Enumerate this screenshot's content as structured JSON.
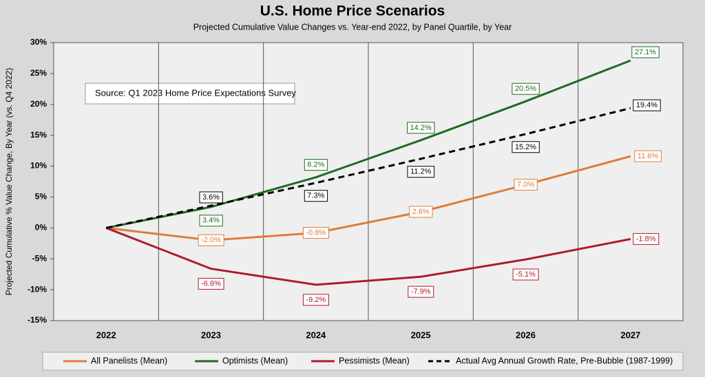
{
  "chart_data": {
    "type": "line",
    "title": "U.S. Home Price Scenarios",
    "subtitle": "Projected Cumulative Value Changes vs. Year-end 2022, by Panel Quartile, by Year",
    "y_label": "Projected Cumulative % Value Change, By Year  (vs. Q4 2022)",
    "annotation": "Source: Q1 2023 Home Price Expectations Survey",
    "categories": [
      "2022",
      "2023",
      "2024",
      "2025",
      "2026",
      "2027"
    ],
    "ylim": [
      -15,
      30
    ],
    "yticks": [
      {
        "value": -15,
        "label": "-15%"
      },
      {
        "value": -10,
        "label": "-10%"
      },
      {
        "value": -5,
        "label": "-5%"
      },
      {
        "value": 0,
        "label": "0%"
      },
      {
        "value": 5,
        "label": "5%"
      },
      {
        "value": 10,
        "label": "10%"
      },
      {
        "value": 15,
        "label": "15%"
      },
      {
        "value": 20,
        "label": "20%"
      },
      {
        "value": 25,
        "label": "25%"
      },
      {
        "value": 30,
        "label": "30%"
      }
    ],
    "grid": false,
    "legend": "bottom",
    "series": [
      {
        "name": "All Panelists (Mean)",
        "color": "#e07b39",
        "dash": false,
        "values": [
          0,
          -2.0,
          -0.8,
          2.6,
          7.0,
          11.6
        ],
        "value_labels": [
          null,
          "-2.0%",
          "-0.8%",
          "2.6%",
          "7.0%",
          "11.6%"
        ]
      },
      {
        "name": "Optimists (Mean)",
        "color": "#1f6b21",
        "dash": false,
        "values": [
          0,
          3.4,
          8.2,
          14.2,
          20.5,
          27.1
        ],
        "value_labels": [
          null,
          "3.4%",
          "8.2%",
          "14.2%",
          "20.5%",
          "27.1%"
        ]
      },
      {
        "name": "Pessimists (Mean)",
        "color": "#ad1c2b",
        "dash": false,
        "values": [
          0,
          -6.6,
          -9.2,
          -7.9,
          -5.1,
          -1.8
        ],
        "value_labels": [
          null,
          "-6.6%",
          "-9.2%",
          "-7.9%",
          "-5.1%",
          "-1.8%"
        ]
      },
      {
        "name": "Actual Avg Annual Growth Rate, Pre-Bubble (1987-1999)",
        "color": "#000000",
        "dash": true,
        "values": [
          0,
          3.6,
          7.3,
          11.2,
          15.2,
          19.4
        ],
        "value_labels": [
          null,
          "3.6%",
          "7.3%",
          "11.2%",
          "15.2%",
          "19.4%"
        ]
      }
    ]
  }
}
